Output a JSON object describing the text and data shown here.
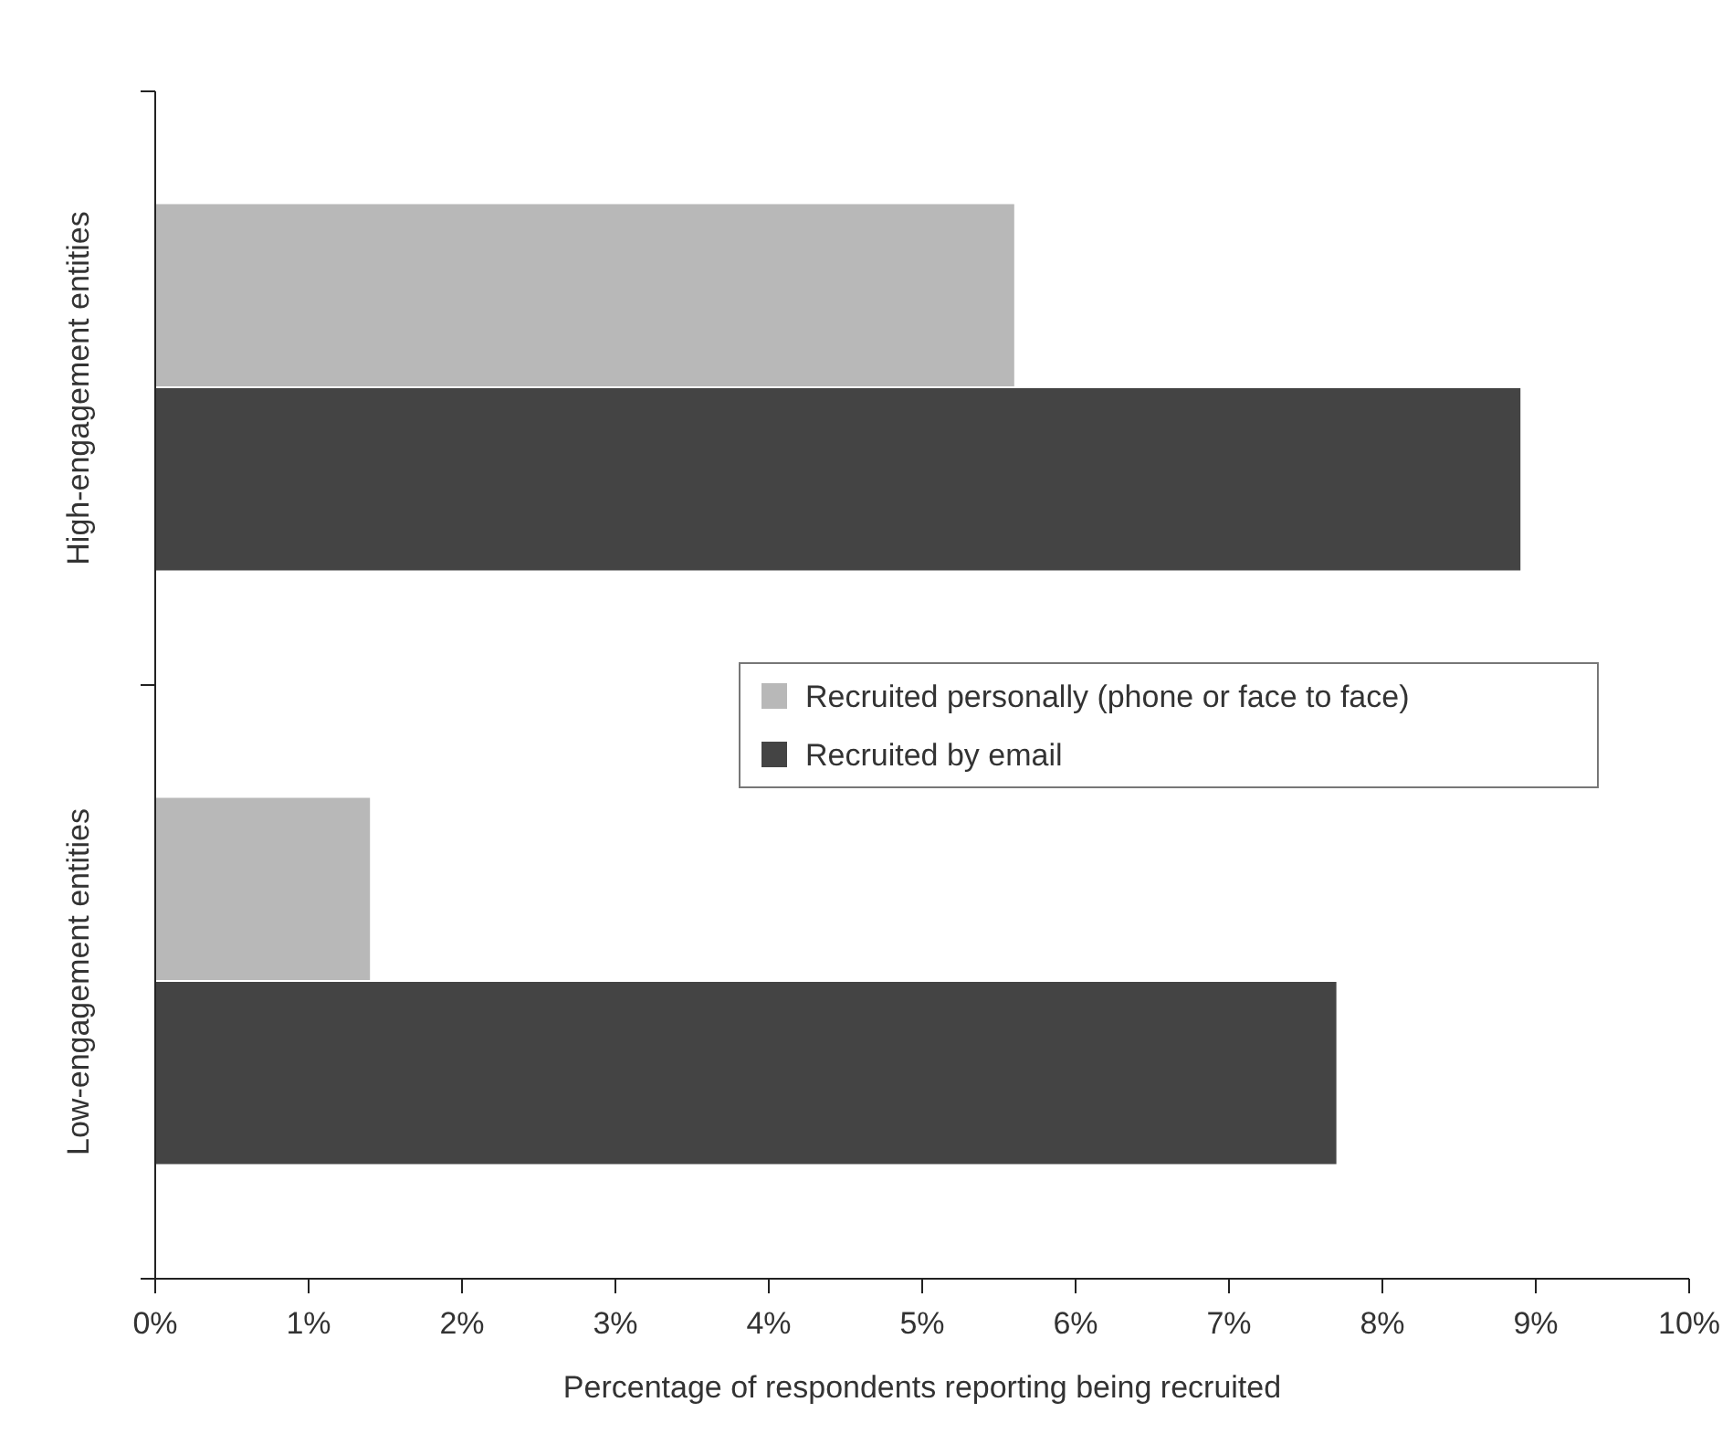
{
  "chart_data": {
    "type": "bar",
    "orientation": "horizontal",
    "xlabel": "Percentage of respondents reporting being recruited",
    "categories": [
      "High-engagement entities",
      "Low-engagement entities"
    ],
    "series": [
      {
        "name": "Recruited personally (phone or face to face)",
        "color": "#b8b8b8",
        "values": [
          5.6,
          1.4
        ]
      },
      {
        "name": "Recruited by email",
        "color": "#444444",
        "values": [
          8.9,
          7.7
        ]
      }
    ],
    "xlim": [
      0,
      10
    ],
    "xticks": [
      {
        "value": 0,
        "label": "0%"
      },
      {
        "value": 1,
        "label": "1%"
      },
      {
        "value": 2,
        "label": "2%"
      },
      {
        "value": 3,
        "label": "3%"
      },
      {
        "value": 4,
        "label": "4%"
      },
      {
        "value": 5,
        "label": "5%"
      },
      {
        "value": 6,
        "label": "6%"
      },
      {
        "value": 7,
        "label": "7%"
      },
      {
        "value": 8,
        "label": "8%"
      },
      {
        "value": 9,
        "label": "9%"
      },
      {
        "value": 10,
        "label": "10%"
      }
    ],
    "grid": false,
    "legend": "right"
  }
}
